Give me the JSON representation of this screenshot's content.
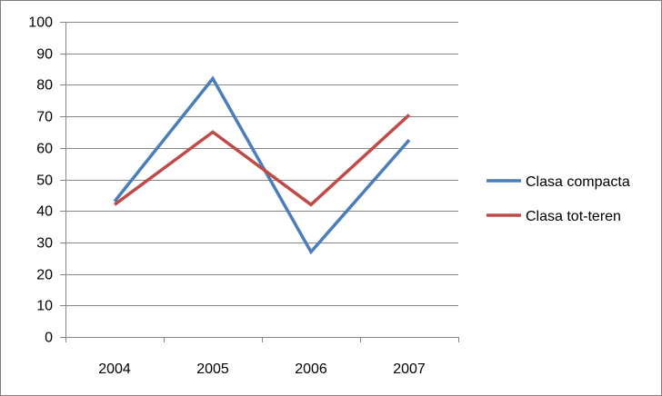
{
  "chart_data": {
    "type": "line",
    "categories": [
      "2004",
      "2005",
      "2006",
      "2007"
    ],
    "series": [
      {
        "name": "Clasa compacta",
        "values": [
          43,
          82,
          27,
          62.5
        ],
        "color": "#4a7ebb"
      },
      {
        "name": "Clasa tot-teren",
        "values": [
          42,
          65,
          42,
          70.5
        ],
        "color": "#be4b48"
      }
    ],
    "ylim": [
      0,
      100
    ],
    "yticks": [
      0,
      10,
      20,
      30,
      40,
      50,
      60,
      70,
      80,
      90,
      100
    ],
    "grid": true,
    "legend_position": "right",
    "gridline_color": "#868686",
    "axis_color": "#868686"
  }
}
